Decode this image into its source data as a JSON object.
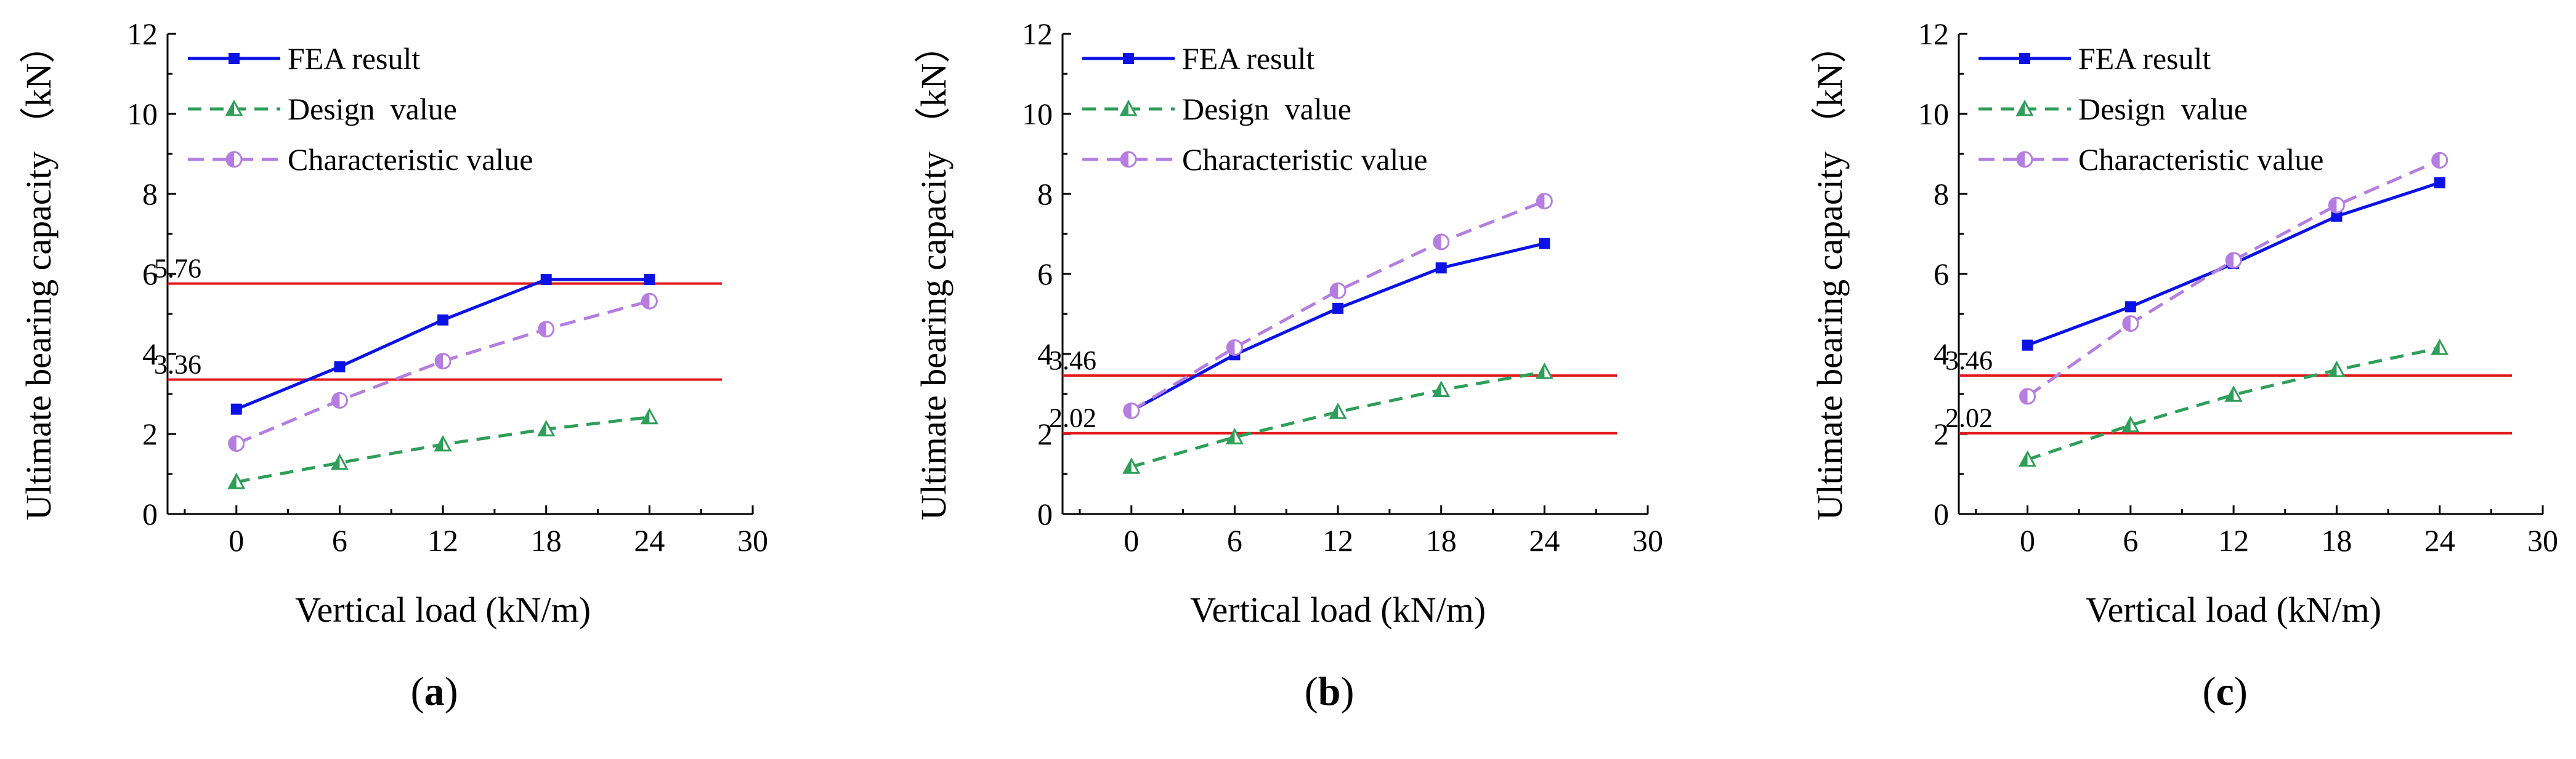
{
  "chart_data": [
    {
      "type": "line",
      "panel_label": "a",
      "xlabel": "Vertical load (kN/m)",
      "ylabel": "Ultimate bearing capacity （kN）",
      "xlim": [
        -4,
        30
      ],
      "ylim": [
        0,
        12
      ],
      "xticks": [
        0,
        6,
        12,
        18,
        24,
        30
      ],
      "yticks": [
        0,
        2,
        4,
        6,
        8,
        10,
        12
      ],
      "x": [
        0,
        6,
        12,
        18,
        24
      ],
      "series": [
        {
          "name": "FEA result",
          "values": [
            2.62,
            3.68,
            4.85,
            5.86,
            5.86
          ]
        },
        {
          "name": "Design  value",
          "values": [
            0.8,
            1.28,
            1.74,
            2.12,
            2.42
          ]
        },
        {
          "name": "Characteristic value",
          "values": [
            1.76,
            2.84,
            3.82,
            4.62,
            5.32
          ]
        }
      ],
      "reference_lines": [
        {
          "value": 5.76,
          "label": "5.76"
        },
        {
          "value": 3.36,
          "label": "3.36"
        }
      ]
    },
    {
      "type": "line",
      "panel_label": "b",
      "xlabel": "Vertical load (kN/m)",
      "ylabel": "Ultimate bearing capacity （kN）",
      "xlim": [
        -4,
        30
      ],
      "ylim": [
        0,
        12
      ],
      "xticks": [
        0,
        6,
        12,
        18,
        24,
        30
      ],
      "yticks": [
        0,
        2,
        4,
        6,
        8,
        10,
        12
      ],
      "x": [
        0,
        6,
        12,
        18,
        24
      ],
      "series": [
        {
          "name": "FEA result",
          "values": [
            2.58,
            3.98,
            5.14,
            6.15,
            6.76
          ]
        },
        {
          "name": "Design  value",
          "values": [
            1.18,
            1.92,
            2.55,
            3.1,
            3.55
          ]
        },
        {
          "name": "Characteristic value",
          "values": [
            2.58,
            4.16,
            5.58,
            6.8,
            7.82
          ]
        }
      ],
      "reference_lines": [
        {
          "value": 3.46,
          "label": "3.46"
        },
        {
          "value": 2.02,
          "label": "2.02"
        }
      ]
    },
    {
      "type": "line",
      "panel_label": "c",
      "xlabel": "Vertical load (kN/m)",
      "ylabel": "Ultimate bearing capacity （kN）",
      "xlim": [
        -4,
        30
      ],
      "ylim": [
        0,
        12
      ],
      "xticks": [
        0,
        6,
        12,
        18,
        24,
        30
      ],
      "yticks": [
        0,
        2,
        4,
        6,
        8,
        10,
        12
      ],
      "x": [
        0,
        6,
        12,
        18,
        24
      ],
      "series": [
        {
          "name": "FEA result",
          "values": [
            4.22,
            5.18,
            6.26,
            7.44,
            8.28
          ]
        },
        {
          "name": "Design  value",
          "values": [
            1.36,
            2.22,
            2.98,
            3.6,
            4.15
          ]
        },
        {
          "name": "Characteristic value",
          "values": [
            2.94,
            4.76,
            6.34,
            7.72,
            8.84
          ]
        }
      ],
      "reference_lines": [
        {
          "value": 3.46,
          "label": "3.46"
        },
        {
          "value": 2.02,
          "label": "2.02"
        }
      ]
    }
  ],
  "colors": {
    "fea": "#0a12e6",
    "design": "#2e9e58",
    "characteristic": "#b57de0",
    "reference": "#e31a1c",
    "axis": "#000000"
  }
}
